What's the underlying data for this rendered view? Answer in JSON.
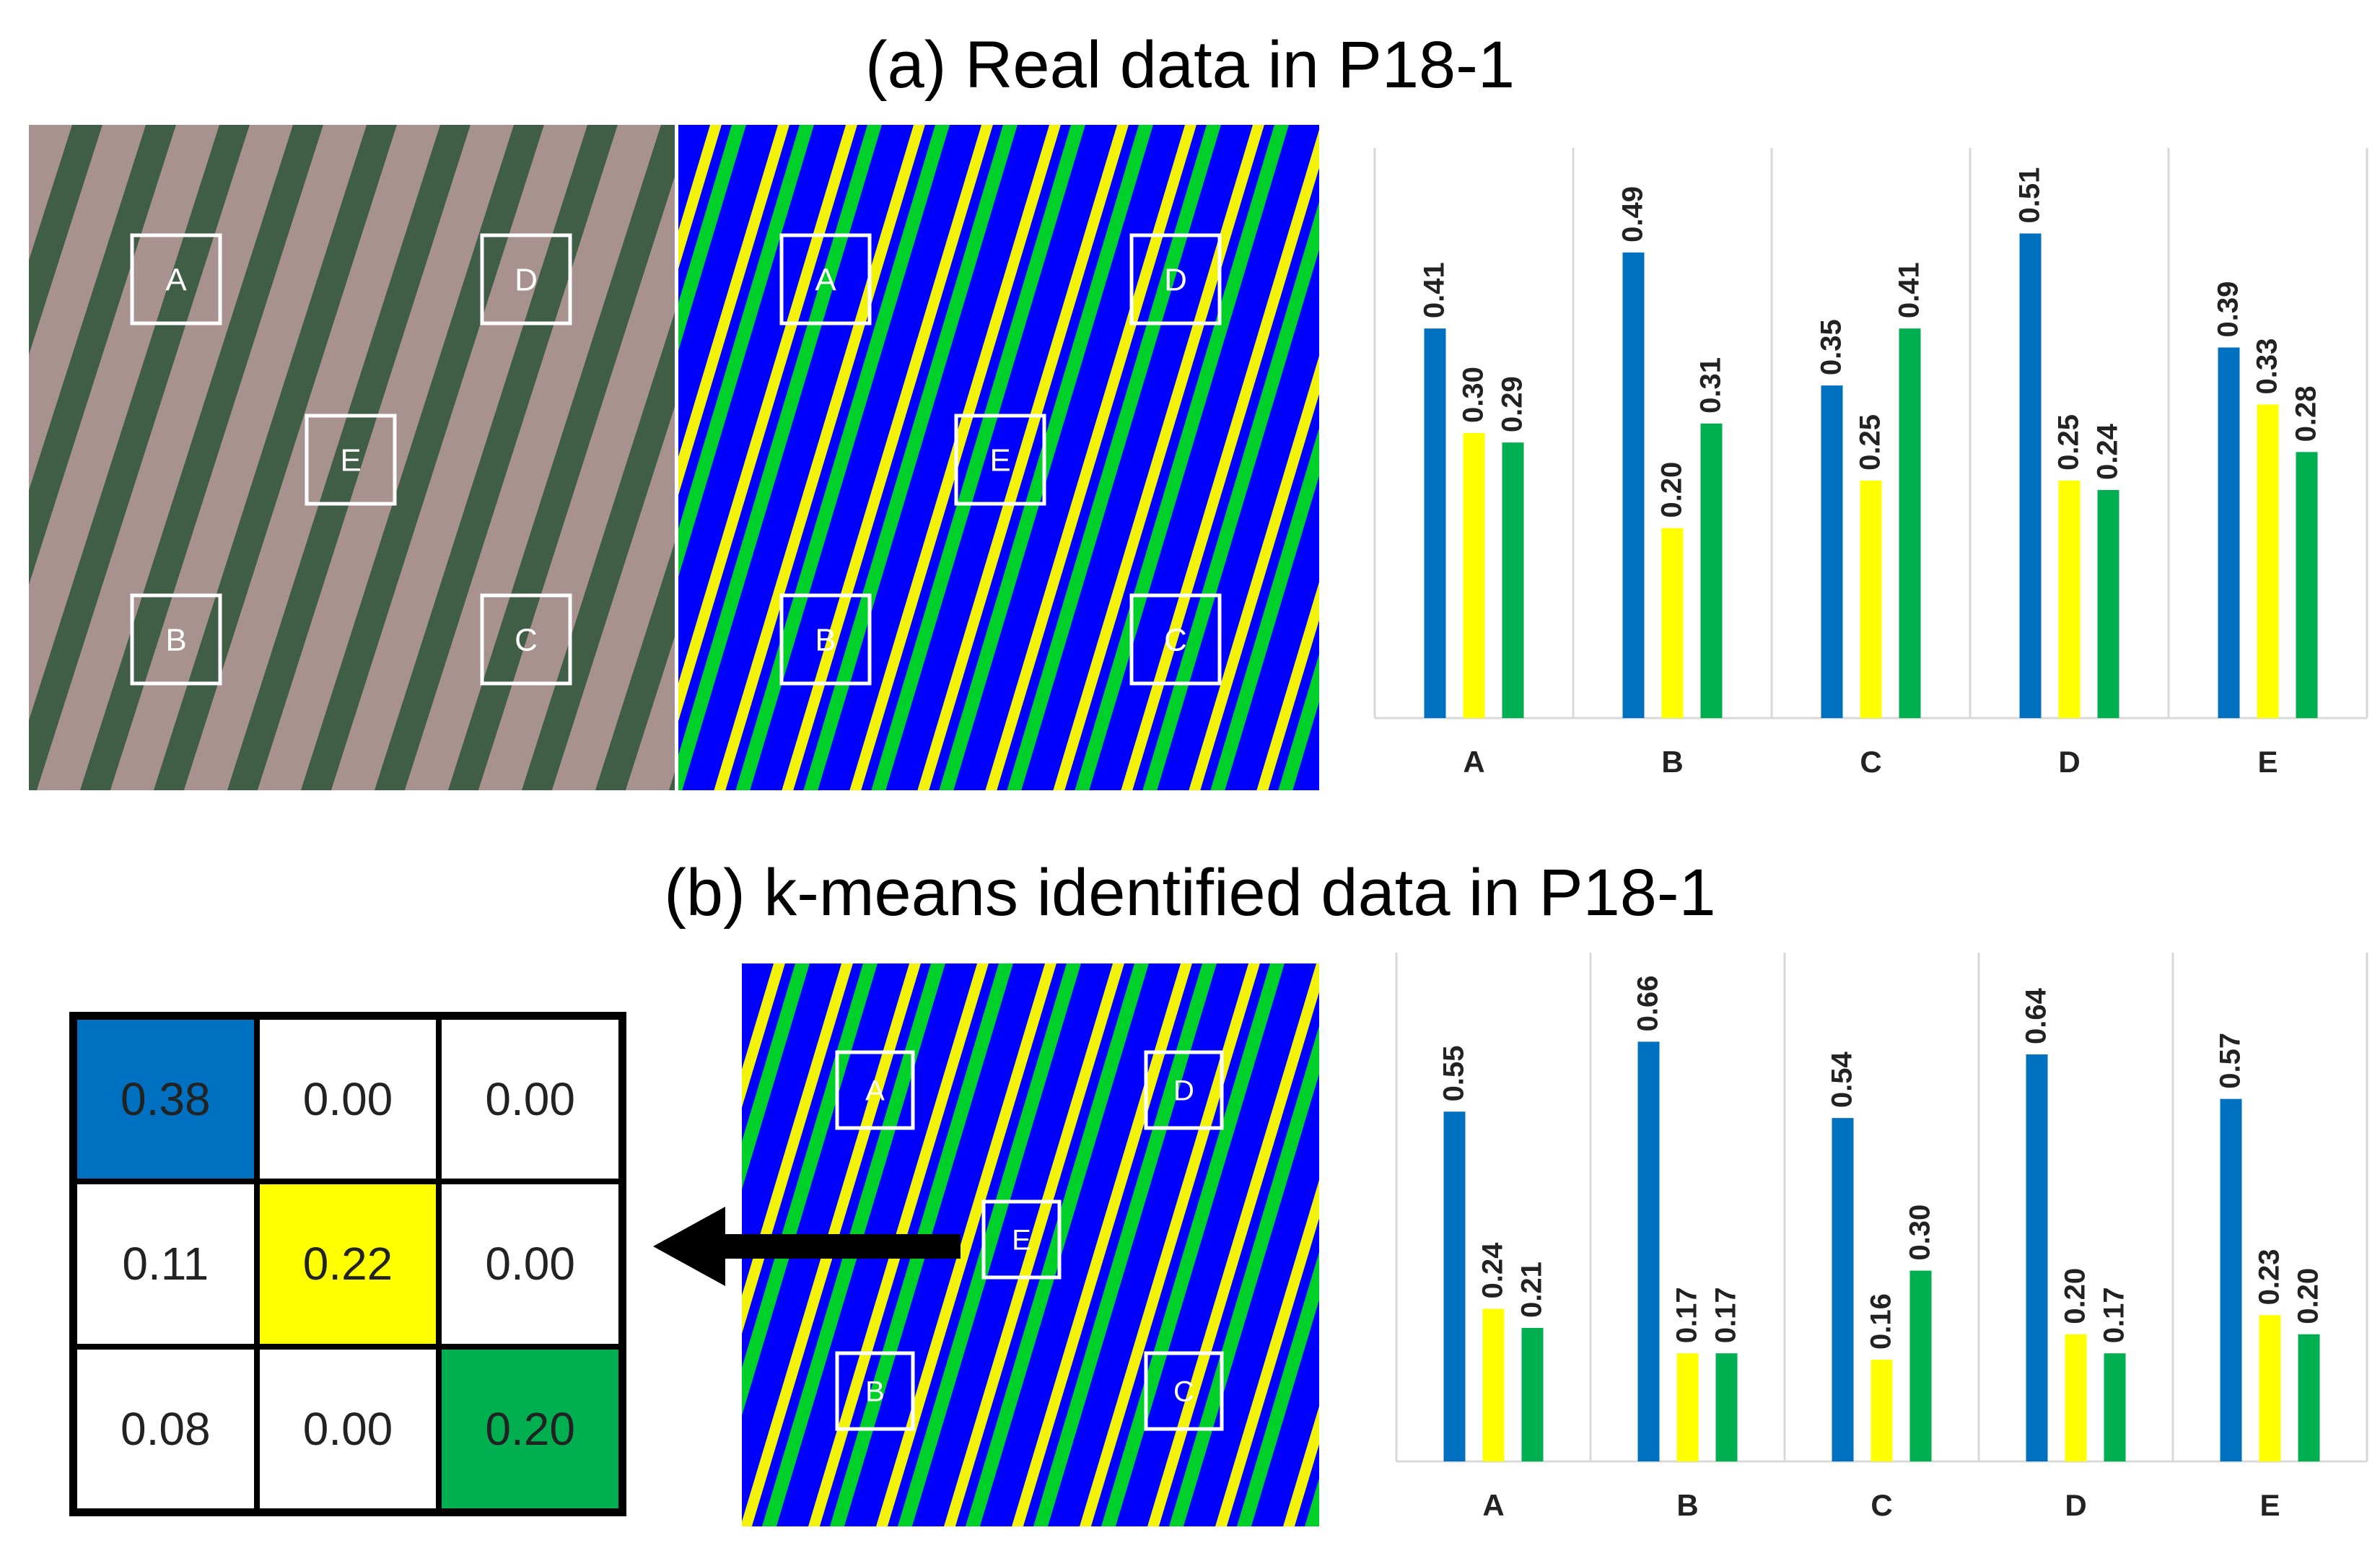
{
  "titles": {
    "a": "(a) Real data in P18-1",
    "b": "(b) k-means identified data in P18-1"
  },
  "region_labels": [
    "A",
    "B",
    "C",
    "D",
    "E"
  ],
  "colors": {
    "blue": "#0070C0",
    "yellow": "#FFFF00",
    "green": "#00B050",
    "segmap_blue": "#0000FF",
    "segmap_yellow": "#F2F20A",
    "segmap_green": "#00D02A",
    "soil": "#A8928F",
    "crop": "#3F5E45"
  },
  "matrix": {
    "cells": [
      [
        "0.38",
        "0.00",
        "0.00"
      ],
      [
        "0.11",
        "0.22",
        "0.00"
      ],
      [
        "0.08",
        "0.00",
        "0.20"
      ]
    ],
    "highlight": [
      "blue",
      "",
      "",
      "",
      "yellow",
      "",
      "",
      "",
      "green"
    ]
  },
  "chart_data": [
    {
      "type": "bar",
      "title": "(a) Real data in P18-1",
      "categories": [
        "A",
        "B",
        "C",
        "D",
        "E"
      ],
      "series": [
        {
          "name": "blue",
          "values": [
            0.41,
            0.49,
            0.35,
            0.51,
            0.39
          ]
        },
        {
          "name": "yellow",
          "values": [
            0.3,
            0.2,
            0.25,
            0.25,
            0.33
          ]
        },
        {
          "name": "green",
          "values": [
            0.29,
            0.31,
            0.41,
            0.24,
            0.28
          ]
        }
      ],
      "labels": [
        [
          "0.41",
          "0.49",
          "0.35",
          "0.51",
          "0.39"
        ],
        [
          "0.30",
          "0.20",
          "0.25",
          "0.25",
          "0.33"
        ],
        [
          "0.29",
          "0.31",
          "0.41",
          "0.24",
          "0.28"
        ]
      ],
      "ylim": [
        0,
        0.6
      ],
      "grid": "vertical separators"
    },
    {
      "type": "bar",
      "title": "(b) k-means identified data in P18-1",
      "categories": [
        "A",
        "B",
        "C",
        "D",
        "E"
      ],
      "series": [
        {
          "name": "blue",
          "values": [
            0.55,
            0.66,
            0.54,
            0.64,
            0.57
          ]
        },
        {
          "name": "yellow",
          "values": [
            0.24,
            0.17,
            0.16,
            0.2,
            0.23
          ]
        },
        {
          "name": "green",
          "values": [
            0.21,
            0.17,
            0.3,
            0.17,
            0.2
          ]
        }
      ],
      "labels": [
        [
          "0.55",
          "0.66",
          "0.54",
          "0.64",
          "0.57"
        ],
        [
          "0.24",
          "0.17",
          "0.16",
          "0.20",
          "0.23"
        ],
        [
          "0.21",
          "0.17",
          "0.30",
          "0.17",
          "0.20"
        ]
      ],
      "ylim": [
        0,
        0.8
      ],
      "grid": "vertical separators"
    }
  ]
}
